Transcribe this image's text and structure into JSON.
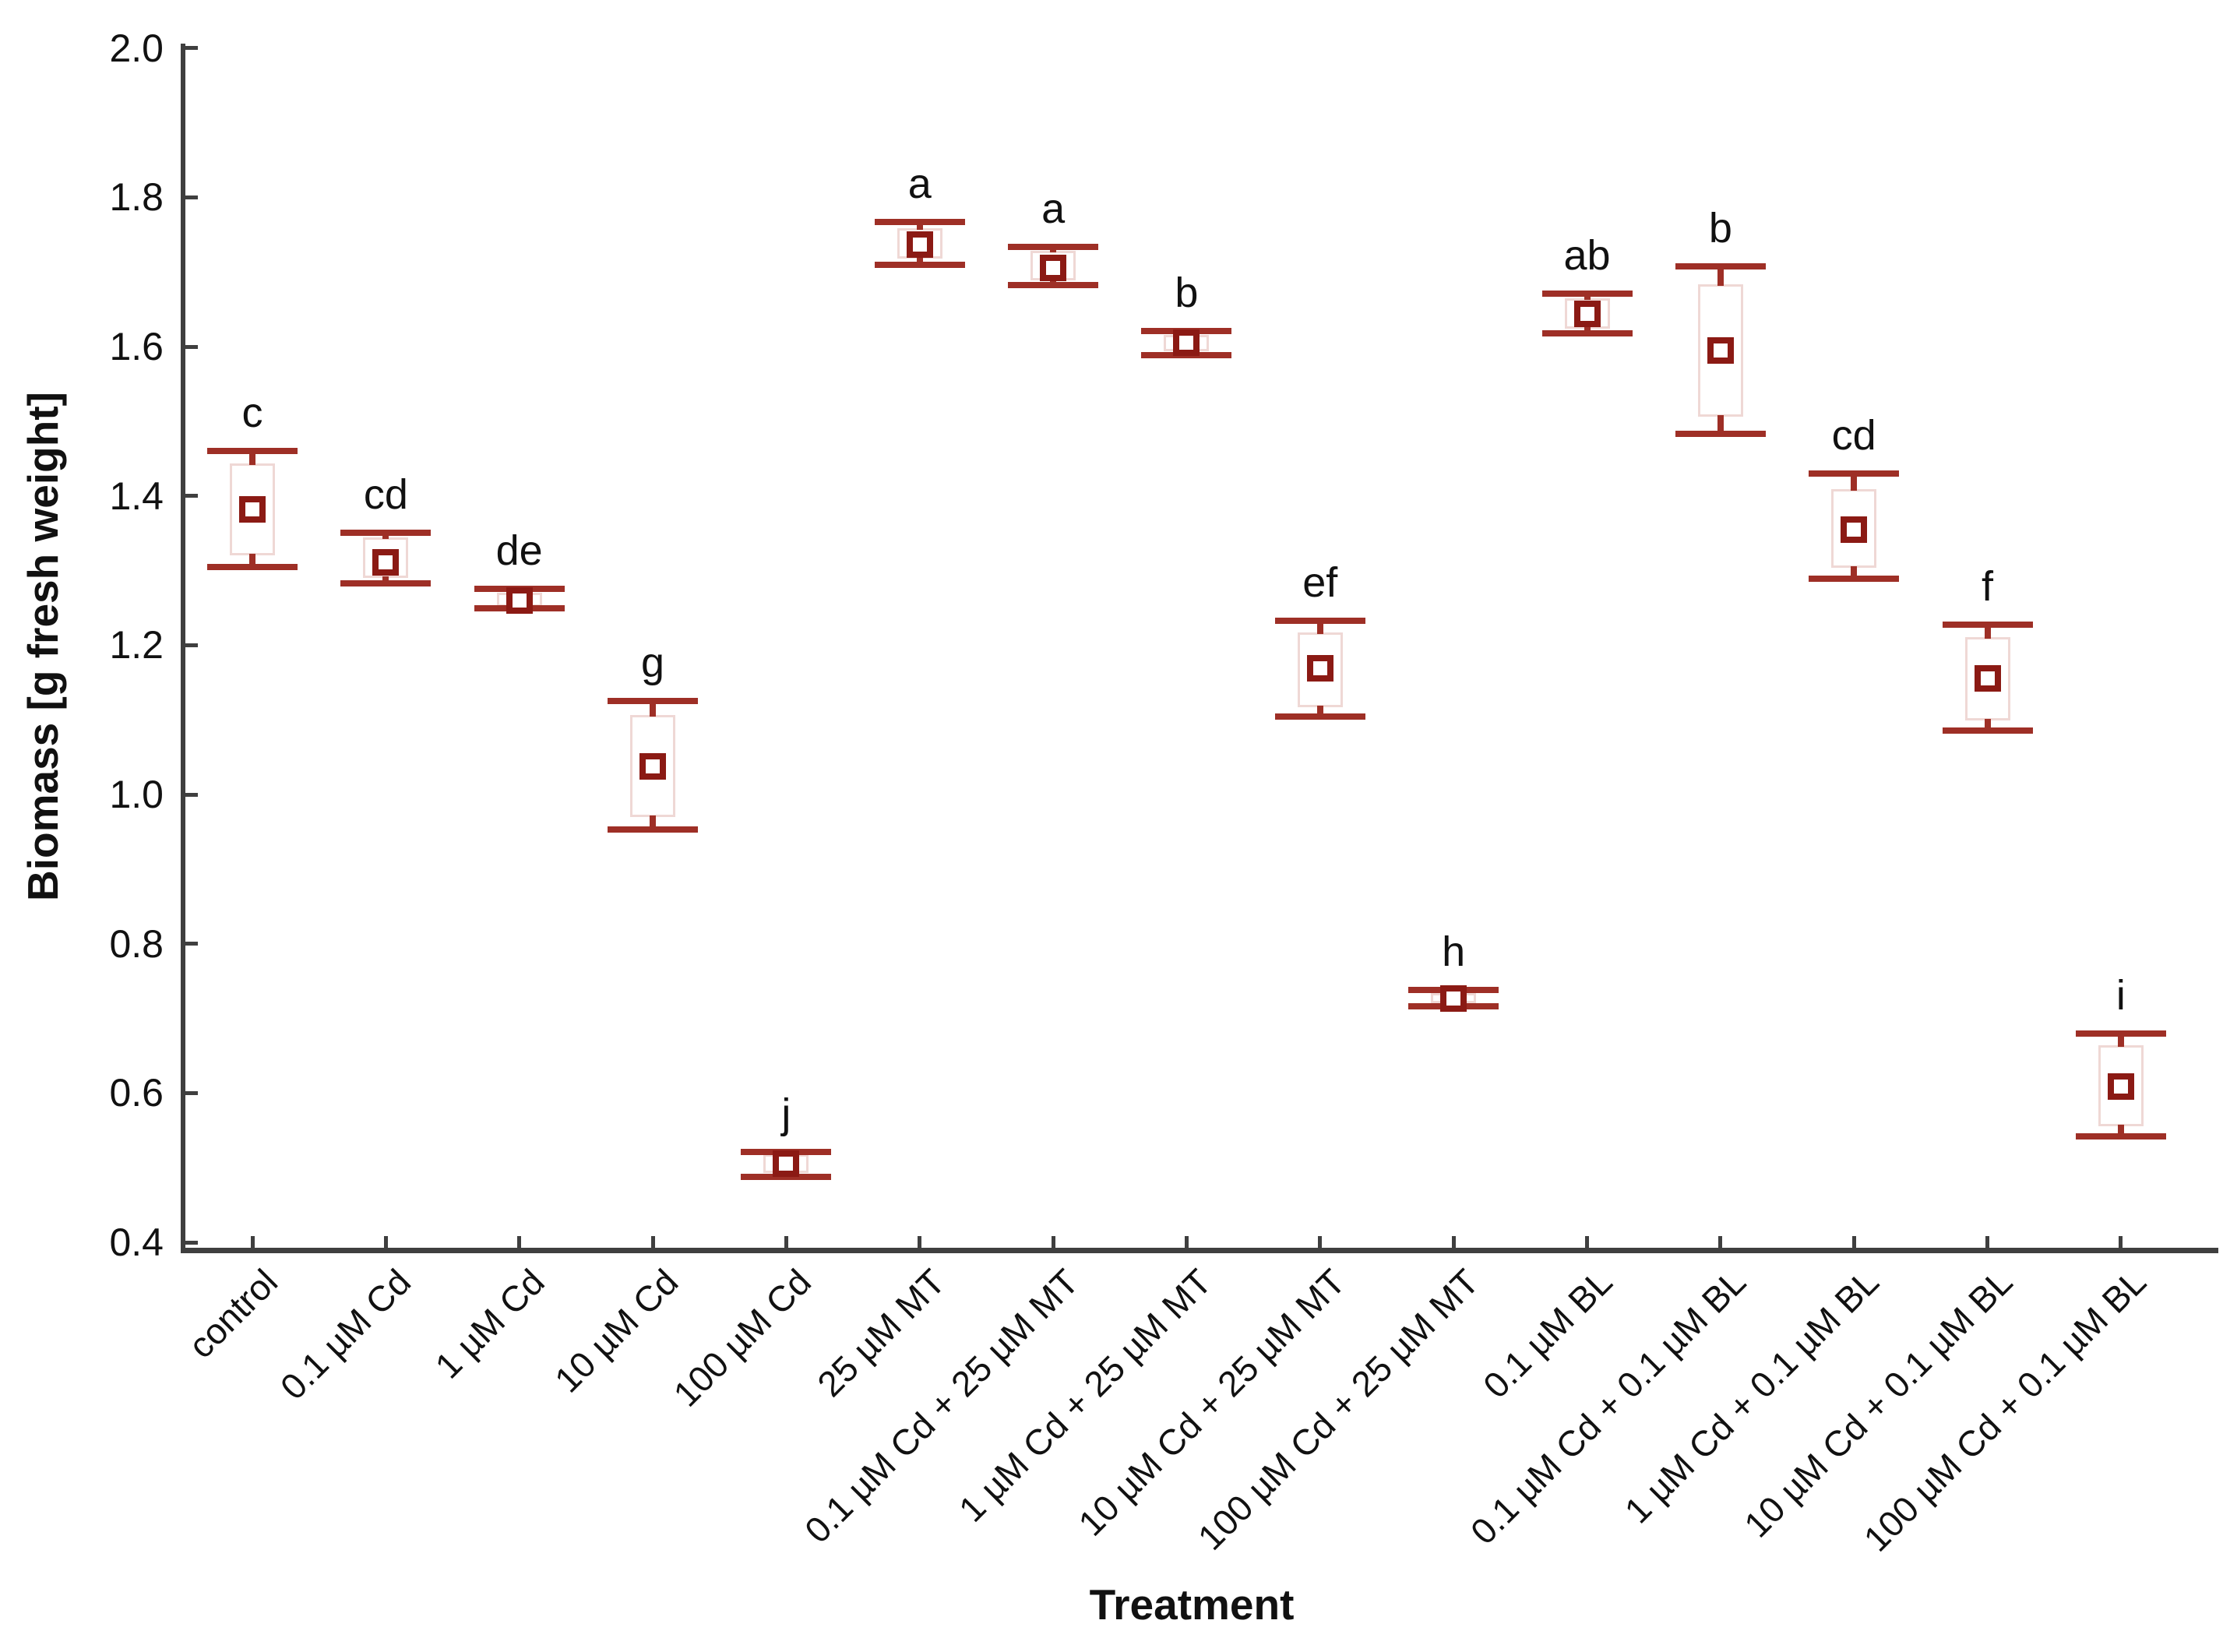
{
  "chart_data": {
    "type": "box",
    "title": "",
    "xlabel": "Treatment",
    "ylabel": "Biomass [g fresh weight]",
    "ylim": [
      0.4,
      2.0
    ],
    "ytick_step": 0.2,
    "yticks": [
      "0.4",
      "0.6",
      "0.8",
      "1.0",
      "1.2",
      "1.4",
      "1.6",
      "1.8",
      "2.0"
    ],
    "grid": false,
    "legend": "none",
    "marker_style": "mean square with box and whisker caps",
    "boxes": [
      {
        "category": "control",
        "letter": "c",
        "whisker_low": 1.305,
        "q1": 1.32,
        "mean": 1.382,
        "q3": 1.443,
        "whisker_high": 1.46
      },
      {
        "category": "0.1 µM Cd",
        "letter": "cd",
        "whisker_low": 1.283,
        "q1": 1.29,
        "mean": 1.311,
        "q3": 1.344,
        "whisker_high": 1.351
      },
      {
        "category": "1 µM Cd",
        "letter": "de",
        "whisker_low": 1.249,
        "q1": 1.251,
        "mean": 1.26,
        "q3": 1.27,
        "whisker_high": 1.275
      },
      {
        "category": "10 µM Cd",
        "letter": "g",
        "whisker_low": 0.953,
        "q1": 0.97,
        "mean": 1.038,
        "q3": 1.106,
        "whisker_high": 1.125
      },
      {
        "category": "100 µM Cd",
        "letter": "j",
        "whisker_low": 0.488,
        "q1": 0.493,
        "mean": 0.505,
        "q3": 0.518,
        "whisker_high": 0.521
      },
      {
        "category": "25 µM MT",
        "letter": "a",
        "whisker_low": 1.71,
        "q1": 1.718,
        "mean": 1.737,
        "q3": 1.759,
        "whisker_high": 1.767
      },
      {
        "category": "0.1 µM Cd + 25 µM MT",
        "letter": "a",
        "whisker_low": 1.682,
        "q1": 1.689,
        "mean": 1.705,
        "q3": 1.728,
        "whisker_high": 1.734
      },
      {
        "category": "1 µM Cd + 25 µM MT",
        "letter": "b",
        "whisker_low": 1.589,
        "q1": 1.594,
        "mean": 1.605,
        "q3": 1.616,
        "whisker_high": 1.621
      },
      {
        "category": "10 µM Cd + 25 µM MT",
        "letter": "ef",
        "whisker_low": 1.104,
        "q1": 1.117,
        "mean": 1.169,
        "q3": 1.217,
        "whisker_high": 1.233
      },
      {
        "category": "100 µM Cd + 25 µM MT",
        "letter": "h",
        "whisker_low": 0.716,
        "q1": 0.72,
        "mean": 0.727,
        "q3": 0.734,
        "whisker_high": 0.738
      },
      {
        "category": "0.1 µM BL",
        "letter": "ab",
        "whisker_low": 1.618,
        "q1": 1.624,
        "mean": 1.644,
        "q3": 1.665,
        "whisker_high": 1.671
      },
      {
        "category": "0.1 µM Cd + 0.1 µM BL",
        "letter": "b",
        "whisker_low": 1.483,
        "q1": 1.506,
        "mean": 1.595,
        "q3": 1.684,
        "whisker_high": 1.708
      },
      {
        "category": "1 µM Cd + 0.1 µM BL",
        "letter": "cd",
        "whisker_low": 1.289,
        "q1": 1.304,
        "mean": 1.355,
        "q3": 1.409,
        "whisker_high": 1.43
      },
      {
        "category": "10 µM Cd + 0.1 µM BL",
        "letter": "f",
        "whisker_low": 1.086,
        "q1": 1.099,
        "mean": 1.155,
        "q3": 1.211,
        "whisker_high": 1.227
      },
      {
        "category": "100 µM Cd + 0.1 µM BL",
        "letter": "i",
        "whisker_low": 0.542,
        "q1": 0.556,
        "mean": 0.609,
        "q3": 0.664,
        "whisker_high": 0.68
      }
    ],
    "colors": {
      "whisker_cap": "#9E2F26",
      "mean_marker_border": "#8B1A14",
      "box_border": "#EFD8D5",
      "box_fill": "#FFFFFF",
      "axis": "#3F3F3F",
      "text": "#111111"
    }
  }
}
